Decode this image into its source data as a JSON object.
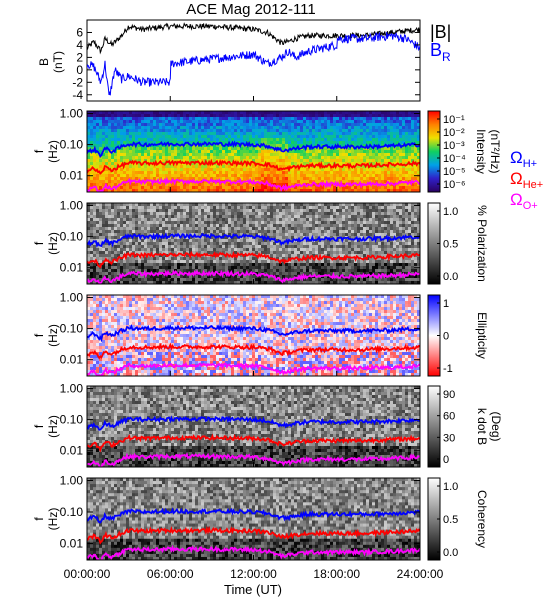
{
  "chart_data": [
    {
      "type": "line",
      "title": "ACE Mag 2012-111",
      "ylabel": "B",
      "yunit": "(nT)",
      "ylim": [
        -5,
        8
      ],
      "yticks": [
        "6",
        "4",
        "2",
        "0",
        "-2",
        "-4"
      ],
      "xlim_hours": [
        0,
        24
      ],
      "series": [
        {
          "name": "|B|",
          "color": "#000000",
          "x": [
            0,
            0.5,
            1,
            1.3,
            1.8,
            2.5,
            3,
            4,
            6,
            9,
            12,
            13,
            14,
            14.5,
            15,
            16,
            18,
            20,
            22,
            24
          ],
          "y": [
            3.5,
            4.5,
            3,
            5,
            4,
            5.5,
            7,
            6.5,
            7,
            7,
            6.5,
            6,
            4.3,
            4.5,
            5,
            5.5,
            5.5,
            5.5,
            6,
            6.5
          ]
        },
        {
          "name": "B",
          "sub": "R",
          "color": "#0000ff",
          "x": [
            0,
            0.5,
            1,
            1.3,
            1.6,
            2,
            2.5,
            3,
            4,
            5,
            6,
            6.05,
            8,
            10,
            12,
            13,
            14,
            14.5,
            15,
            16,
            18,
            18.05,
            20,
            22,
            23,
            24
          ],
          "y": [
            1,
            0.5,
            -2,
            1,
            -4.5,
            0,
            -1.5,
            -1,
            -2,
            -2,
            -2,
            1,
            1.5,
            2,
            2.5,
            1,
            2,
            3,
            2,
            3,
            4,
            5,
            5,
            5.5,
            5,
            3.5
          ]
        }
      ]
    },
    {
      "type": "heatmap",
      "quantity": "Intensity",
      "colorbar_label": "Intensity",
      "colorbar_unit": "(nT²/Hz)",
      "colorbar_ticks": [
        "10⁻¹",
        "10⁻²",
        "10⁻³",
        "10⁻⁴",
        "10⁻⁵",
        "10⁻⁶"
      ],
      "colorbar_colors": [
        "#2a0060",
        "#3020c8",
        "#00a0e8",
        "#10d060",
        "#f0e000",
        "#ff8000",
        "#ff0000"
      ]
    },
    {
      "type": "heatmap",
      "quantity": "% Polarization",
      "colorbar_label": "% Polarization",
      "colorbar_ticks": [
        "1.0",
        "0.5",
        "0.0"
      ],
      "colorbar_colors": [
        "#ffffff",
        "#000000"
      ]
    },
    {
      "type": "heatmap",
      "quantity": "Ellipticity",
      "colorbar_label": "Ellipticity",
      "colorbar_ticks": [
        "1",
        "0",
        "-1"
      ],
      "colorbar_colors": [
        "#0000ff",
        "#ffffff",
        "#ff0000"
      ]
    },
    {
      "type": "heatmap",
      "quantity": "k dot B",
      "colorbar_label": "k dot B",
      "colorbar_unit": "(Deg)",
      "colorbar_ticks": [
        "90",
        "60",
        "30",
        "0"
      ],
      "colorbar_colors": [
        "#ffffff",
        "#000000"
      ]
    },
    {
      "type": "heatmap",
      "quantity": "Coherency",
      "colorbar_label": "Coherency",
      "colorbar_ticks": [
        "1.0",
        "0.5",
        "0.0"
      ],
      "colorbar_colors": [
        "#ffffff",
        "#000000"
      ]
    }
  ],
  "spectrogram_axes": {
    "ylabel": "f",
    "yunit": "(Hz)",
    "yticks": [
      "1.00",
      "0.10",
      "0.01"
    ],
    "log_scale": true,
    "ylim": [
      0.003,
      1.2
    ]
  },
  "gyrofrequency_lines": [
    {
      "name": "Ω",
      "sub": "H+",
      "color": "#0000ff",
      "x": [
        0,
        0.5,
        1,
        1.3,
        1.8,
        2.5,
        3,
        4,
        6,
        9,
        12,
        13,
        14,
        14.5,
        15,
        16,
        18,
        20,
        22,
        24
      ],
      "y": [
        0.055,
        0.07,
        0.045,
        0.075,
        0.06,
        0.085,
        0.105,
        0.1,
        0.105,
        0.105,
        0.1,
        0.09,
        0.065,
        0.068,
        0.075,
        0.085,
        0.085,
        0.085,
        0.09,
        0.1
      ]
    },
    {
      "name": "Ω",
      "sub": "He+",
      "color": "#ff0000",
      "x": [
        0,
        0.5,
        1,
        1.3,
        1.8,
        2.5,
        3,
        4,
        6,
        9,
        12,
        13,
        14,
        14.5,
        15,
        16,
        18,
        20,
        22,
        24
      ],
      "y": [
        0.014,
        0.017,
        0.011,
        0.019,
        0.015,
        0.021,
        0.026,
        0.025,
        0.026,
        0.026,
        0.025,
        0.023,
        0.016,
        0.017,
        0.019,
        0.021,
        0.021,
        0.021,
        0.023,
        0.025
      ]
    },
    {
      "name": "Ω",
      "sub": "O+",
      "color": "#ff00ff",
      "x": [
        0,
        0.5,
        1,
        1.3,
        1.8,
        2.5,
        3,
        4,
        6,
        9,
        12,
        13,
        14,
        14.5,
        15,
        16,
        18,
        20,
        22,
        24
      ],
      "y": [
        0.0035,
        0.0043,
        0.0028,
        0.0047,
        0.0037,
        0.0053,
        0.0066,
        0.0063,
        0.0066,
        0.0066,
        0.0063,
        0.0056,
        0.004,
        0.0042,
        0.0047,
        0.0053,
        0.0053,
        0.0053,
        0.0056,
        0.0063
      ]
    }
  ],
  "xaxis": {
    "ticks": [
      "00:00:00",
      "06:00:00",
      "12:00:00",
      "18:00:00",
      "24:00:00"
    ],
    "tick_hours": [
      0,
      6,
      12,
      18,
      24
    ],
    "label": "Time (UT)"
  }
}
